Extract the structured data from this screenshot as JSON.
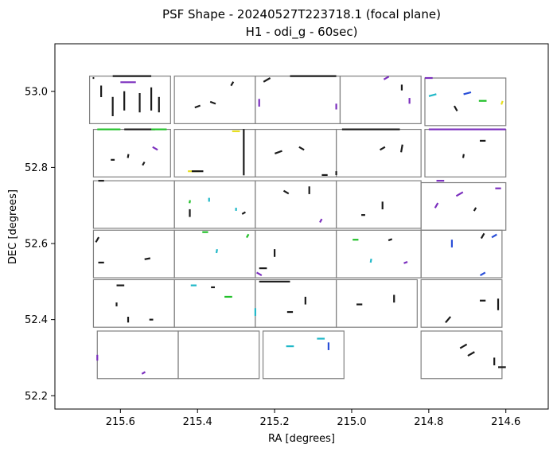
{
  "chart_data": {
    "type": "scatter",
    "title": "PSF Shape - 20240527T223718.1 (focal plane)",
    "subtitle": "H1 - odi_g - 60sec)",
    "xlabel": "RA [degrees]",
    "ylabel": "DEC [degrees]",
    "xlim": [
      215.77,
      214.49
    ],
    "ylim": [
      52.165,
      53.125
    ],
    "x_inverted": true,
    "xticks": [
      215.6,
      215.4,
      215.2,
      215.0,
      214.8,
      214.6
    ],
    "xtick_labels": [
      "215.6",
      "215.4",
      "215.2",
      "215.0",
      "214.8",
      "214.6"
    ],
    "yticks": [
      53.0,
      52.8,
      52.6,
      52.4,
      52.2
    ],
    "ytick_labels": [
      "53.0",
      "52.8",
      "52.6",
      "52.4",
      "52.2"
    ],
    "grid": false,
    "legend": "none",
    "colors": {
      "stick_default": "#1a1a1a",
      "stick_purple": "#7b2fbe",
      "stick_blue": "#2a4fd8",
      "stick_cyan": "#20b8c8",
      "stick_green": "#22c02a",
      "stick_yellow": "#e8e020",
      "cell_border": "#808080"
    },
    "cells": [
      {
        "x": [
          215.68,
          215.47
        ],
        "y": [
          52.915,
          53.04
        ]
      },
      {
        "x": [
          215.46,
          215.25
        ],
        "y": [
          52.915,
          53.04
        ]
      },
      {
        "x": [
          215.25,
          215.03
        ],
        "y": [
          52.915,
          53.04
        ]
      },
      {
        "x": [
          215.03,
          214.82
        ],
        "y": [
          52.915,
          53.04
        ]
      },
      {
        "x": [
          214.81,
          214.6
        ],
        "y": [
          52.91,
          53.035
        ]
      },
      {
        "x": [
          215.67,
          215.47
        ],
        "y": [
          52.775,
          52.9
        ]
      },
      {
        "x": [
          215.46,
          215.25
        ],
        "y": [
          52.775,
          52.9
        ]
      },
      {
        "x": [
          215.25,
          215.04
        ],
        "y": [
          52.775,
          52.9
        ]
      },
      {
        "x": [
          215.04,
          214.82
        ],
        "y": [
          52.775,
          52.9
        ]
      },
      {
        "x": [
          214.81,
          214.6
        ],
        "y": [
          52.775,
          52.9
        ]
      },
      {
        "x": [
          215.67,
          215.46
        ],
        "y": [
          52.64,
          52.765
        ]
      },
      {
        "x": [
          215.46,
          215.25
        ],
        "y": [
          52.64,
          52.765
        ]
      },
      {
        "x": [
          215.25,
          215.04
        ],
        "y": [
          52.64,
          52.765
        ]
      },
      {
        "x": [
          215.04,
          214.82
        ],
        "y": [
          52.64,
          52.765
        ]
      },
      {
        "x": [
          214.82,
          214.6
        ],
        "y": [
          52.635,
          52.76
        ]
      },
      {
        "x": [
          215.67,
          215.46
        ],
        "y": [
          52.51,
          52.635
        ]
      },
      {
        "x": [
          215.46,
          215.25
        ],
        "y": [
          52.51,
          52.635
        ]
      },
      {
        "x": [
          215.25,
          215.04
        ],
        "y": [
          52.51,
          52.635
        ]
      },
      {
        "x": [
          215.04,
          214.82
        ],
        "y": [
          52.51,
          52.635
        ]
      },
      {
        "x": [
          214.82,
          214.61
        ],
        "y": [
          52.51,
          52.635
        ]
      },
      {
        "x": [
          215.67,
          215.46
        ],
        "y": [
          52.38,
          52.505
        ]
      },
      {
        "x": [
          215.46,
          215.25
        ],
        "y": [
          52.38,
          52.505
        ]
      },
      {
        "x": [
          215.25,
          215.04
        ],
        "y": [
          52.38,
          52.505
        ]
      },
      {
        "x": [
          215.04,
          214.83
        ],
        "y": [
          52.38,
          52.505
        ]
      },
      {
        "x": [
          214.82,
          214.61
        ],
        "y": [
          52.38,
          52.505
        ]
      },
      {
        "x": [
          215.66,
          215.45
        ],
        "y": [
          52.245,
          52.37
        ]
      },
      {
        "x": [
          215.45,
          215.24
        ],
        "y": [
          52.245,
          52.37
        ]
      },
      {
        "x": [
          215.23,
          215.02
        ],
        "y": [
          52.245,
          52.37
        ]
      },
      {
        "x": [
          214.82,
          214.61
        ],
        "y": [
          52.245,
          52.37
        ]
      }
    ],
    "sticks": [
      {
        "ra": 215.67,
        "dec": 53.035,
        "len": 0.004,
        "angle": 0,
        "color": "stick_default"
      },
      {
        "ra": 215.65,
        "dec": 53.0,
        "len": 0.03,
        "angle": 90,
        "color": "stick_default"
      },
      {
        "ra": 215.62,
        "dec": 52.96,
        "len": 0.05,
        "angle": 90,
        "color": "stick_default"
      },
      {
        "ra": 215.59,
        "dec": 52.975,
        "len": 0.05,
        "angle": 90,
        "color": "stick_default"
      },
      {
        "ra": 215.55,
        "dec": 52.97,
        "len": 0.05,
        "angle": 90,
        "color": "stick_default"
      },
      {
        "ra": 215.52,
        "dec": 52.98,
        "len": 0.06,
        "angle": 90,
        "color": "stick_default"
      },
      {
        "ra": 215.5,
        "dec": 52.965,
        "len": 0.04,
        "angle": 90,
        "color": "stick_default"
      },
      {
        "ra": 215.57,
        "dec": 53.04,
        "len": 0.1,
        "angle": 0,
        "color": "stick_default"
      },
      {
        "ra": 215.58,
        "dec": 53.024,
        "len": 0.04,
        "angle": 0,
        "color": "stick_purple"
      },
      {
        "ra": 215.4,
        "dec": 52.96,
        "len": 0.015,
        "angle": 20,
        "color": "stick_default"
      },
      {
        "ra": 215.36,
        "dec": 52.97,
        "len": 0.015,
        "angle": -20,
        "color": "stick_default"
      },
      {
        "ra": 215.31,
        "dec": 53.02,
        "len": 0.012,
        "angle": 60,
        "color": "stick_default"
      },
      {
        "ra": 215.22,
        "dec": 53.03,
        "len": 0.02,
        "angle": 30,
        "color": "stick_default"
      },
      {
        "ra": 215.24,
        "dec": 52.97,
        "len": 0.02,
        "angle": 90,
        "color": "stick_purple"
      },
      {
        "ra": 215.1,
        "dec": 53.04,
        "len": 0.12,
        "angle": 0,
        "color": "stick_default"
      },
      {
        "ra": 215.04,
        "dec": 52.96,
        "len": 0.015,
        "angle": 90,
        "color": "stick_purple"
      },
      {
        "ra": 214.91,
        "dec": 53.035,
        "len": 0.015,
        "angle": 30,
        "color": "stick_purple"
      },
      {
        "ra": 214.87,
        "dec": 53.01,
        "len": 0.015,
        "angle": 90,
        "color": "stick_default"
      },
      {
        "ra": 214.85,
        "dec": 52.975,
        "len": 0.015,
        "angle": 90,
        "color": "stick_purple"
      },
      {
        "ra": 214.8,
        "dec": 53.035,
        "len": 0.02,
        "angle": 0,
        "color": "stick_purple"
      },
      {
        "ra": 214.79,
        "dec": 52.99,
        "len": 0.02,
        "angle": 15,
        "color": "stick_cyan"
      },
      {
        "ra": 214.7,
        "dec": 52.995,
        "len": 0.02,
        "angle": 15,
        "color": "stick_blue"
      },
      {
        "ra": 214.66,
        "dec": 52.975,
        "len": 0.02,
        "angle": 0,
        "color": "stick_green"
      },
      {
        "ra": 214.61,
        "dec": 52.97,
        "len": 0.01,
        "angle": 70,
        "color": "stick_yellow"
      },
      {
        "ra": 214.73,
        "dec": 52.955,
        "len": 0.015,
        "angle": -60,
        "color": "stick_default"
      },
      {
        "ra": 215.63,
        "dec": 52.9,
        "len": 0.06,
        "angle": 0,
        "color": "stick_green"
      },
      {
        "ra": 215.55,
        "dec": 52.9,
        "len": 0.08,
        "angle": 0,
        "color": "stick_default"
      },
      {
        "ra": 215.5,
        "dec": 52.9,
        "len": 0.04,
        "angle": 0,
        "color": "stick_green"
      },
      {
        "ra": 215.51,
        "dec": 52.85,
        "len": 0.015,
        "angle": -30,
        "color": "stick_purple"
      },
      {
        "ra": 215.58,
        "dec": 52.83,
        "len": 0.01,
        "angle": 80,
        "color": "stick_default"
      },
      {
        "ra": 215.62,
        "dec": 52.82,
        "len": 0.01,
        "angle": 0,
        "color": "stick_default"
      },
      {
        "ra": 215.54,
        "dec": 52.81,
        "len": 0.01,
        "angle": 60,
        "color": "stick_default"
      },
      {
        "ra": 215.41,
        "dec": 52.79,
        "len": 0.03,
        "angle": 0,
        "color": "stick_yellow"
      },
      {
        "ra": 215.4,
        "dec": 52.79,
        "len": 0.03,
        "angle": 0,
        "color": "stick_default"
      },
      {
        "ra": 215.3,
        "dec": 52.895,
        "len": 0.02,
        "angle": 0,
        "color": "stick_yellow"
      },
      {
        "ra": 215.28,
        "dec": 52.84,
        "len": 0.12,
        "angle": 90,
        "color": "stick_default"
      },
      {
        "ra": 215.19,
        "dec": 52.84,
        "len": 0.02,
        "angle": 20,
        "color": "stick_default"
      },
      {
        "ra": 215.13,
        "dec": 52.85,
        "len": 0.015,
        "angle": -30,
        "color": "stick_default"
      },
      {
        "ra": 215.07,
        "dec": 52.78,
        "len": 0.015,
        "angle": 0,
        "color": "stick_default"
      },
      {
        "ra": 215.04,
        "dec": 52.785,
        "len": 0.01,
        "angle": 90,
        "color": "stick_default"
      },
      {
        "ra": 214.95,
        "dec": 52.9,
        "len": 0.15,
        "angle": 0,
        "color": "stick_default"
      },
      {
        "ra": 214.92,
        "dec": 52.85,
        "len": 0.015,
        "angle": 30,
        "color": "stick_default"
      },
      {
        "ra": 214.87,
        "dec": 52.85,
        "len": 0.02,
        "angle": 80,
        "color": "stick_default"
      },
      {
        "ra": 214.7,
        "dec": 52.9,
        "len": 0.2,
        "angle": 0,
        "color": "stick_purple"
      },
      {
        "ra": 214.66,
        "dec": 52.87,
        "len": 0.015,
        "angle": 0,
        "color": "stick_default"
      },
      {
        "ra": 214.71,
        "dec": 52.83,
        "len": 0.01,
        "angle": 80,
        "color": "stick_default"
      },
      {
        "ra": 215.65,
        "dec": 52.765,
        "len": 0.015,
        "angle": 0,
        "color": "stick_default"
      },
      {
        "ra": 215.42,
        "dec": 52.71,
        "len": 0.008,
        "angle": 80,
        "color": "stick_green"
      },
      {
        "ra": 215.37,
        "dec": 52.715,
        "len": 0.01,
        "angle": 90,
        "color": "stick_cyan"
      },
      {
        "ra": 215.42,
        "dec": 52.68,
        "len": 0.02,
        "angle": 90,
        "color": "stick_default"
      },
      {
        "ra": 215.28,
        "dec": 52.68,
        "len": 0.01,
        "angle": 30,
        "color": "stick_default"
      },
      {
        "ra": 215.3,
        "dec": 52.69,
        "len": 0.008,
        "angle": 90,
        "color": "stick_cyan"
      },
      {
        "ra": 215.11,
        "dec": 52.74,
        "len": 0.02,
        "angle": 90,
        "color": "stick_default"
      },
      {
        "ra": 215.17,
        "dec": 52.735,
        "len": 0.015,
        "angle": -30,
        "color": "stick_default"
      },
      {
        "ra": 215.08,
        "dec": 52.66,
        "len": 0.01,
        "angle": 60,
        "color": "stick_purple"
      },
      {
        "ra": 214.92,
        "dec": 52.7,
        "len": 0.02,
        "angle": 90,
        "color": "stick_default"
      },
      {
        "ra": 214.97,
        "dec": 52.675,
        "len": 0.01,
        "angle": 0,
        "color": "stick_default"
      },
      {
        "ra": 214.77,
        "dec": 52.765,
        "len": 0.02,
        "angle": 0,
        "color": "stick_purple"
      },
      {
        "ra": 214.72,
        "dec": 52.73,
        "len": 0.02,
        "angle": 30,
        "color": "stick_purple"
      },
      {
        "ra": 214.68,
        "dec": 52.69,
        "len": 0.01,
        "angle": 60,
        "color": "stick_default"
      },
      {
        "ra": 214.78,
        "dec": 52.7,
        "len": 0.015,
        "angle": 60,
        "color": "stick_purple"
      },
      {
        "ra": 214.62,
        "dec": 52.745,
        "len": 0.015,
        "angle": 0,
        "color": "stick_purple"
      },
      {
        "ra": 215.66,
        "dec": 52.61,
        "len": 0.015,
        "angle": 60,
        "color": "stick_default"
      },
      {
        "ra": 215.65,
        "dec": 52.55,
        "len": 0.015,
        "angle": 0,
        "color": "stick_default"
      },
      {
        "ra": 215.53,
        "dec": 52.56,
        "len": 0.015,
        "angle": 10,
        "color": "stick_default"
      },
      {
        "ra": 215.38,
        "dec": 52.63,
        "len": 0.015,
        "angle": 0,
        "color": "stick_green"
      },
      {
        "ra": 215.35,
        "dec": 52.58,
        "len": 0.01,
        "angle": 80,
        "color": "stick_cyan"
      },
      {
        "ra": 215.27,
        "dec": 52.62,
        "len": 0.01,
        "angle": 60,
        "color": "stick_green"
      },
      {
        "ra": 215.2,
        "dec": 52.575,
        "len": 0.02,
        "angle": 90,
        "color": "stick_default"
      },
      {
        "ra": 215.23,
        "dec": 52.535,
        "len": 0.02,
        "angle": 0,
        "color": "stick_default"
      },
      {
        "ra": 215.24,
        "dec": 52.52,
        "len": 0.015,
        "angle": -30,
        "color": "stick_purple"
      },
      {
        "ra": 214.99,
        "dec": 52.61,
        "len": 0.015,
        "angle": 0,
        "color": "stick_green"
      },
      {
        "ra": 214.95,
        "dec": 52.555,
        "len": 0.01,
        "angle": 80,
        "color": "stick_cyan"
      },
      {
        "ra": 214.9,
        "dec": 52.61,
        "len": 0.01,
        "angle": 20,
        "color": "stick_default"
      },
      {
        "ra": 214.86,
        "dec": 52.55,
        "len": 0.01,
        "angle": 20,
        "color": "stick_purple"
      },
      {
        "ra": 214.74,
        "dec": 52.6,
        "len": 0.02,
        "angle": 90,
        "color": "stick_blue"
      },
      {
        "ra": 214.66,
        "dec": 52.62,
        "len": 0.015,
        "angle": 60,
        "color": "stick_default"
      },
      {
        "ra": 214.63,
        "dec": 52.62,
        "len": 0.015,
        "angle": 30,
        "color": "stick_blue"
      },
      {
        "ra": 214.66,
        "dec": 52.52,
        "len": 0.015,
        "angle": 30,
        "color": "stick_blue"
      },
      {
        "ra": 215.6,
        "dec": 52.49,
        "len": 0.02,
        "angle": 0,
        "color": "stick_default"
      },
      {
        "ra": 215.61,
        "dec": 52.44,
        "len": 0.01,
        "angle": 90,
        "color": "stick_default"
      },
      {
        "ra": 215.58,
        "dec": 52.4,
        "len": 0.015,
        "angle": 90,
        "color": "stick_default"
      },
      {
        "ra": 215.52,
        "dec": 52.4,
        "len": 0.01,
        "angle": 0,
        "color": "stick_default"
      },
      {
        "ra": 215.41,
        "dec": 52.49,
        "len": 0.015,
        "angle": 0,
        "color": "stick_cyan"
      },
      {
        "ra": 215.36,
        "dec": 52.485,
        "len": 0.01,
        "angle": 0,
        "color": "stick_default"
      },
      {
        "ra": 215.32,
        "dec": 52.46,
        "len": 0.02,
        "angle": 0,
        "color": "stick_green"
      },
      {
        "ra": 215.25,
        "dec": 52.42,
        "len": 0.02,
        "angle": 90,
        "color": "stick_cyan"
      },
      {
        "ra": 215.2,
        "dec": 52.5,
        "len": 0.08,
        "angle": 0,
        "color": "stick_default"
      },
      {
        "ra": 215.12,
        "dec": 52.45,
        "len": 0.02,
        "angle": 90,
        "color": "stick_default"
      },
      {
        "ra": 215.16,
        "dec": 52.42,
        "len": 0.015,
        "angle": 0,
        "color": "stick_default"
      },
      {
        "ra": 214.98,
        "dec": 52.44,
        "len": 0.015,
        "angle": 0,
        "color": "stick_default"
      },
      {
        "ra": 214.89,
        "dec": 52.455,
        "len": 0.02,
        "angle": 90,
        "color": "stick_default"
      },
      {
        "ra": 214.66,
        "dec": 52.45,
        "len": 0.015,
        "angle": 0,
        "color": "stick_default"
      },
      {
        "ra": 214.62,
        "dec": 52.44,
        "len": 0.03,
        "angle": 90,
        "color": "stick_default"
      },
      {
        "ra": 214.75,
        "dec": 52.4,
        "len": 0.02,
        "angle": 50,
        "color": "stick_default"
      },
      {
        "ra": 215.66,
        "dec": 52.3,
        "len": 0.015,
        "angle": 90,
        "color": "stick_purple"
      },
      {
        "ra": 215.54,
        "dec": 52.26,
        "len": 0.01,
        "angle": 30,
        "color": "stick_purple"
      },
      {
        "ra": 215.16,
        "dec": 52.33,
        "len": 0.02,
        "angle": 0,
        "color": "stick_cyan"
      },
      {
        "ra": 215.08,
        "dec": 52.35,
        "len": 0.02,
        "angle": 0,
        "color": "stick_cyan"
      },
      {
        "ra": 215.06,
        "dec": 52.33,
        "len": 0.02,
        "angle": 90,
        "color": "stick_blue"
      },
      {
        "ra": 214.71,
        "dec": 52.33,
        "len": 0.02,
        "angle": 30,
        "color": "stick_default"
      },
      {
        "ra": 214.69,
        "dec": 52.31,
        "len": 0.02,
        "angle": 30,
        "color": "stick_default"
      },
      {
        "ra": 214.63,
        "dec": 52.29,
        "len": 0.02,
        "angle": 90,
        "color": "stick_default"
      },
      {
        "ra": 214.61,
        "dec": 52.275,
        "len": 0.02,
        "angle": 0,
        "color": "stick_default"
      }
    ]
  }
}
